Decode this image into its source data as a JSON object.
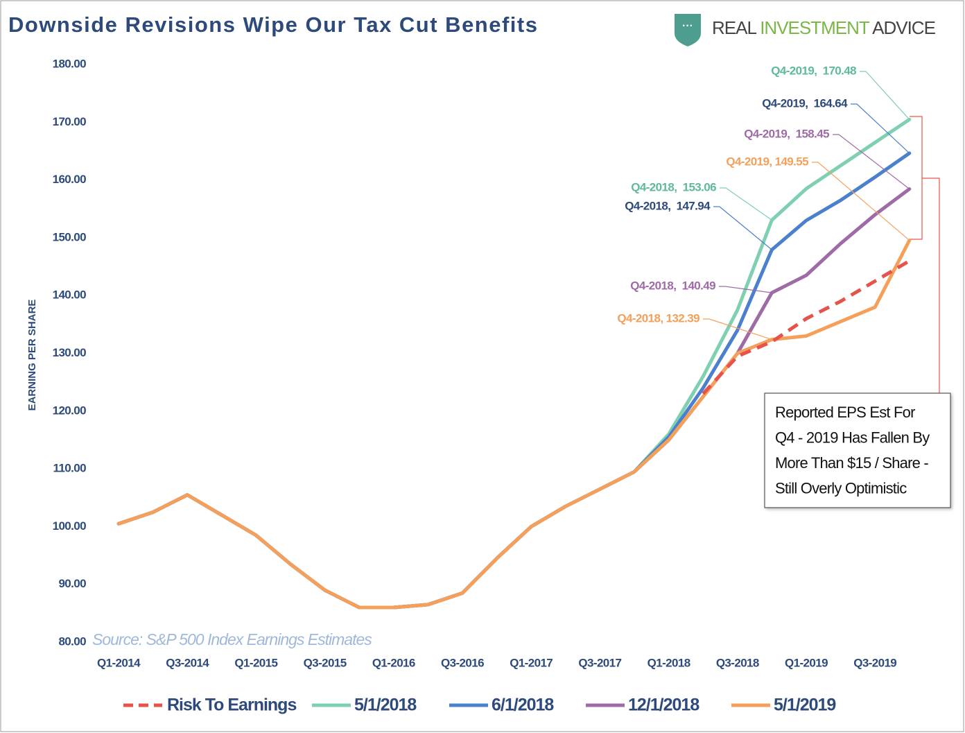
{
  "chart_data": {
    "type": "line",
    "title": "Downside Revisions Wipe Our Tax Cut Benefits",
    "logo": {
      "parts": [
        "REAL",
        "INVESTMENT",
        "ADVICE"
      ]
    },
    "ylabel": "EARNING PER SHARE",
    "source": "Source: S&P 500 Index Earnings Estimates",
    "categories": [
      "Q1-2014",
      null,
      "Q3-2014",
      null,
      "Q1-2015",
      null,
      "Q3-2015",
      null,
      "Q1-2016",
      null,
      "Q3-2016",
      null,
      "Q1-2017",
      null,
      "Q3-2017",
      null,
      "Q1-2018",
      null,
      "Q3-2018",
      null,
      "Q1-2019",
      null,
      "Q3-2019",
      null
    ],
    "ylim": [
      80,
      180
    ],
    "yticks": [
      {
        "value": 80,
        "label": "80.00"
      },
      {
        "value": 90,
        "label": "90.00"
      },
      {
        "value": 100,
        "label": "100.00"
      },
      {
        "value": 110,
        "label": "110.00"
      },
      {
        "value": 120,
        "label": "120.00"
      },
      {
        "value": 130,
        "label": "130.00"
      },
      {
        "value": 140,
        "label": "140.00"
      },
      {
        "value": 150,
        "label": "150.00"
      },
      {
        "value": 160,
        "label": "160.00"
      },
      {
        "value": 170,
        "label": "170.00"
      },
      {
        "value": 180,
        "label": "180.00"
      }
    ],
    "grid": false,
    "series": [
      {
        "name": "Risk To Earnings",
        "color": "#e5534b",
        "dashed": true,
        "values": [
          null,
          null,
          null,
          null,
          null,
          null,
          null,
          null,
          null,
          null,
          null,
          null,
          null,
          null,
          null,
          null,
          null,
          123,
          129.5,
          132,
          136,
          139,
          142.5,
          146
        ]
      },
      {
        "name": "5/1/2018",
        "color": "#7fd0b0",
        "values": [
          100.5,
          102.5,
          105.5,
          102,
          98.5,
          93.5,
          89,
          86,
          86,
          86.5,
          88.5,
          94.5,
          100,
          103.5,
          106.5,
          109.5,
          116,
          126,
          137.5,
          153.06,
          158.5,
          162.5,
          166.5,
          170.48
        ]
      },
      {
        "name": "6/1/2018",
        "color": "#4b80cc",
        "values": [
          100.5,
          102.5,
          105.5,
          102,
          98.5,
          93.5,
          89,
          86,
          86,
          86.5,
          88.5,
          94.5,
          100,
          103.5,
          106.5,
          109.5,
          115.5,
          124,
          134,
          147.94,
          153,
          156.5,
          160.5,
          164.64
        ]
      },
      {
        "name": "12/1/2018",
        "color": "#9e6ba6",
        "values": [
          100.5,
          102.5,
          105.5,
          102,
          98.5,
          93.5,
          89,
          86,
          86,
          86.5,
          88.5,
          94.5,
          100,
          103.5,
          106.5,
          109.5,
          115,
          122.5,
          130,
          140.49,
          143.5,
          149,
          154,
          158.45
        ]
      },
      {
        "name": "5/1/2019",
        "color": "#f5a05a",
        "values": [
          100.5,
          102.5,
          105.5,
          102,
          98.5,
          93.5,
          89,
          86,
          86,
          86.5,
          88.5,
          94.5,
          100,
          103.5,
          106.5,
          109.5,
          115,
          122.5,
          130,
          132.39,
          133,
          135.5,
          138,
          149.55
        ]
      }
    ],
    "annotations": [
      "Q4-2019,  170.48",
      "Q4-2019,  164.64",
      "Q4-2019,  158.45",
      "Q4-2019, 149.55",
      "Q4-2018,  153.06",
      "Q4-2018,  147.94",
      "Q4-2018,  140.49",
      "Q4-2018, 132.39"
    ],
    "note": [
      "Reported EPS Est For",
      "Q4 - 2019 Has Fallen By",
      "More Than $15 / Share -",
      "Still Overly Optimistic"
    ]
  }
}
